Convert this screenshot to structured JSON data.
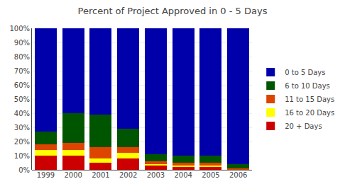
{
  "chart_data": {
    "type": "bar",
    "title": "Percent of Project Approved in 0 - 5 Days",
    "categories": [
      "1999",
      "2000",
      "2001",
      "2002",
      "2003",
      "2004",
      "2005",
      "2006"
    ],
    "series": [
      {
        "name": "20 + Days",
        "color": "#cc0000",
        "values": [
          10,
          10,
          5,
          8,
          3,
          2,
          2,
          0
        ]
      },
      {
        "name": "16 to 20 Days",
        "color": "#ffff00",
        "values": [
          4,
          4,
          3,
          4,
          1,
          1,
          1,
          0
        ]
      },
      {
        "name": "11 to 15 Days",
        "color": "#dd4400",
        "values": [
          4,
          5,
          8,
          4,
          2,
          2,
          2,
          1
        ]
      },
      {
        "name": "6 to 10 Days",
        "color": "#005500",
        "values": [
          9,
          21,
          23,
          13,
          5,
          5,
          5,
          3
        ]
      },
      {
        "name": "0 to 5 Days",
        "color": "#0000aa",
        "values": [
          73,
          60,
          61,
          71,
          89,
          90,
          90,
          96
        ]
      }
    ],
    "stacked": true,
    "ylim": [
      0,
      100
    ],
    "yticks": [
      {
        "value": 0,
        "label": "0%"
      },
      {
        "value": 10,
        "label": "10%"
      },
      {
        "value": 20,
        "label": "20%"
      },
      {
        "value": 30,
        "label": "30%"
      },
      {
        "value": 40,
        "label": "40%"
      },
      {
        "value": 50,
        "label": "50%"
      },
      {
        "value": 60,
        "label": "60%"
      },
      {
        "value": 70,
        "label": "70%"
      },
      {
        "value": 80,
        "label": "80%"
      },
      {
        "value": 90,
        "label": "90%"
      },
      {
        "value": 100,
        "label": "100%"
      }
    ],
    "grid": true,
    "legend": "right"
  }
}
